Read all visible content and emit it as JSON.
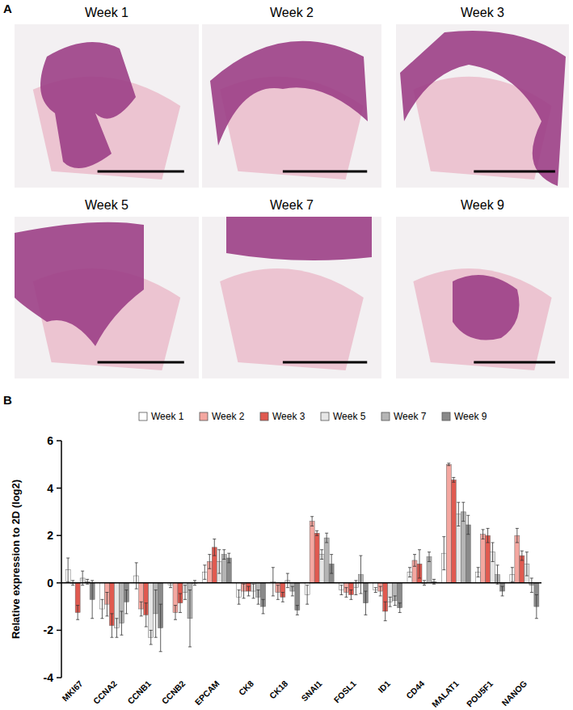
{
  "figure": {
    "panel_labels": [
      "A",
      "B"
    ],
    "image_titles": [
      "Week 1",
      "Week 2",
      "Week 3",
      "Week 5",
      "Week 7",
      "Week 9"
    ]
  },
  "chart_data": {
    "type": "bar",
    "y_label": "Relative expression to 2D (log2)",
    "categories": [
      "MKI67",
      "CCNA2",
      "CCNB1",
      "CCNB2",
      "EPCAM",
      "CK8",
      "CK18",
      "SNAI1",
      "FOSL1",
      "ID1",
      "CD44",
      "MALAT1",
      "POU5F1",
      "NANOG"
    ],
    "ylim": [
      -4,
      6
    ],
    "yticks": [
      -4,
      -2,
      0,
      2,
      4,
      6
    ],
    "grid": false,
    "legend": "top",
    "series": [
      {
        "name": "Week 1",
        "color": "#ffffff",
        "values": [
          0.55,
          -1.1,
          0.3,
          -0.1,
          0.45,
          -0.6,
          0.05,
          -0.5,
          -0.3,
          -0.3,
          0.45,
          1.25,
          0.45,
          0.35
        ],
        "errors": [
          0.5,
          0.4,
          0.55,
          0.1,
          0.3,
          0.3,
          0.6,
          0.4,
          0.2,
          0.1,
          0.2,
          0.7,
          0.2,
          0.3
        ]
      },
      {
        "name": "Week 2",
        "color": "#f4a7a0",
        "values": [
          0.0,
          -0.9,
          -1.1,
          -1.25,
          0.9,
          -0.35,
          -0.4,
          2.6,
          -0.4,
          -0.35,
          0.95,
          5.0,
          2.05,
          2.0
        ],
        "errors": [
          0.1,
          0.5,
          0.3,
          0.3,
          0.3,
          0.3,
          0.3,
          0.2,
          0.2,
          0.2,
          0.25,
          0.05,
          0.2,
          0.3
        ]
      },
      {
        "name": "Week 3",
        "color": "#e05a50",
        "values": [
          -1.25,
          -1.8,
          -1.35,
          -0.85,
          1.5,
          -0.35,
          -0.6,
          2.1,
          -0.5,
          -1.2,
          0.8,
          4.35,
          2.0,
          1.15
        ],
        "errors": [
          0.3,
          0.5,
          0.5,
          0.4,
          0.35,
          0.2,
          0.2,
          0.1,
          0.2,
          0.4,
          0.6,
          0.1,
          0.3,
          0.2
        ]
      },
      {
        "name": "Week 5",
        "color": "#e6e6e6",
        "values": [
          0.2,
          -1.9,
          -2.3,
          -0.4,
          0.9,
          -0.35,
          0.1,
          1.2,
          -0.2,
          -0.8,
          0.0,
          2.9,
          1.3,
          0.8
        ],
        "errors": [
          0.3,
          0.4,
          0.3,
          0.3,
          0.5,
          0.3,
          0.3,
          0.2,
          0.3,
          0.2,
          0.1,
          0.5,
          0.4,
          0.5
        ]
      },
      {
        "name": "Week 7",
        "color": "#b5b5b5",
        "values": [
          0.05,
          -1.7,
          -1.3,
          -1.5,
          1.2,
          -0.6,
          -0.35,
          1.9,
          0.35,
          -0.75,
          1.1,
          3.0,
          0.35,
          -0.1
        ],
        "errors": [
          0.1,
          0.5,
          1.0,
          1.2,
          0.2,
          0.3,
          0.2,
          0.2,
          0.8,
          0.2,
          0.2,
          0.4,
          0.4,
          0.3
        ]
      },
      {
        "name": "Week 9",
        "color": "#8a8a8a",
        "values": [
          -0.7,
          -0.8,
          -1.9,
          0.0,
          1.05,
          -1.0,
          -1.15,
          0.8,
          -0.85,
          -1.05,
          0.05,
          2.45,
          -0.35,
          -1.0
        ],
        "errors": [
          0.8,
          0.5,
          1.0,
          0.1,
          0.2,
          0.3,
          0.2,
          0.4,
          0.5,
          0.2,
          0.1,
          0.4,
          0.2,
          0.5
        ]
      }
    ]
  }
}
